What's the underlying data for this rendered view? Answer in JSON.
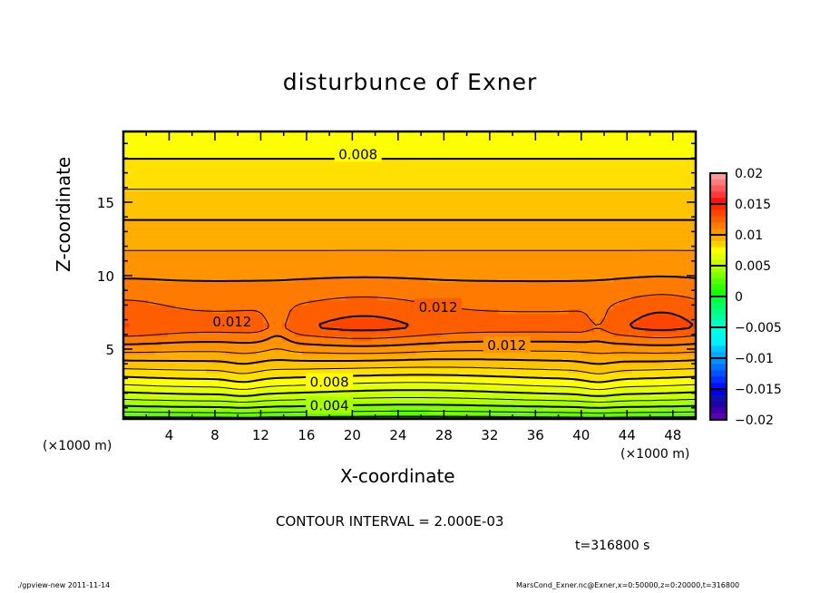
{
  "chart_data": {
    "type": "contour",
    "title": "disturbunce of Exner",
    "xlabel": "X-coordinate",
    "ylabel": "Z-coordinate",
    "x_unit_label": "(×1000 m)",
    "xlim": [
      0,
      50
    ],
    "ylim": [
      0,
      19.8
    ],
    "x_ticks": [
      "4",
      "8",
      "12",
      "16",
      "20",
      "24",
      "28",
      "32",
      "36",
      "40",
      "44",
      "48"
    ],
    "y_ticks": [
      "5",
      "10",
      "15"
    ],
    "contour_interval_text": "CONTOUR INTERVAL = 2.000E-03",
    "time_text": "t=316800 s",
    "colorbar": {
      "range": [
        -0.02,
        0.02
      ],
      "tick_labels": [
        "0.02",
        "0.015",
        "0.01",
        "0.005",
        "0",
        "−0.005",
        "−0.01",
        "−0.015",
        "−0.02"
      ],
      "colors_top_to_bottom": [
        "#ff9a9a",
        "#ff7a7a",
        "#ff5a5a",
        "#ff3a3a",
        "#ff1010",
        "#ff2a00",
        "#ff4400",
        "#ff5e00",
        "#ff7a00",
        "#ff9400",
        "#ffad00",
        "#ffd000",
        "#ffff00",
        "#e4ff00",
        "#c8ff00",
        "#a8ff00",
        "#80ff00",
        "#55ff00",
        "#30ff00",
        "#10ff00",
        "#00ff40",
        "#00ff60",
        "#00ff80",
        "#00ffa0",
        "#00ffc8",
        "#00ffe0",
        "#00f8f0",
        "#00f0ff",
        "#00c8ff",
        "#00a8ff",
        "#0090ff",
        "#0070ff",
        "#0050ff",
        "#0030ff",
        "#0010ff",
        "#0000e8",
        "#1010b0",
        "#2000a8",
        "#4000a8",
        "#6000b0"
      ]
    },
    "bands": [
      {
        "level": 0.001,
        "color": "#30ff00"
      },
      {
        "level": 0.002,
        "color": "#55ff00"
      },
      {
        "level": 0.003,
        "color": "#80ff00"
      },
      {
        "level": 0.004,
        "color": "#a8ff00"
      },
      {
        "level": 0.005,
        "color": "#c8ff00"
      },
      {
        "level": 0.006,
        "color": "#e4ff00"
      },
      {
        "level": 0.007,
        "color": "#ffff00"
      },
      {
        "level": 0.008,
        "color": "#ffe000"
      },
      {
        "level": 0.009,
        "color": "#ffc400"
      },
      {
        "level": 0.01,
        "color": "#ffad00"
      },
      {
        "level": 0.011,
        "color": "#ff9400"
      },
      {
        "level": 0.012,
        "color": "#ff7a00"
      },
      {
        "level": 0.013,
        "color": "#ff5e00"
      },
      {
        "level": 0.014,
        "color": "#ff4400"
      }
    ],
    "contour_labels": [
      {
        "text": "0.008",
        "x": 20.5,
        "z": 18.3
      },
      {
        "text": "0.012",
        "x": 9.5,
        "z": 6.9
      },
      {
        "text": "0.012",
        "x": 27.5,
        "z": 7.9
      },
      {
        "text": "0.012",
        "x": 33.5,
        "z": 5.3
      },
      {
        "text": "0.008",
        "x": 18.0,
        "z": 2.8
      },
      {
        "text": "0.004",
        "x": 18.0,
        "z": 1.2
      }
    ]
  },
  "footer": {
    "left": "./gpview-new   2011-11-14",
    "right": "MarsCond_Exner.nc@Exner,x=0:50000,z=0:20000,t=316800"
  }
}
